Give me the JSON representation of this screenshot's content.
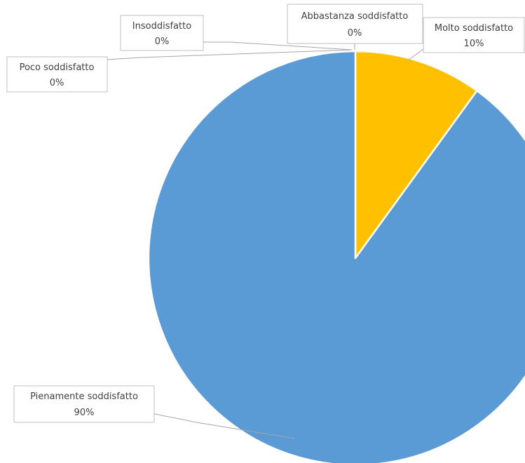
{
  "chart_data": {
    "type": "pie",
    "title": "",
    "slices": [
      {
        "label": "Insoddisfatto",
        "value": 0,
        "value_label": "0%",
        "color": "#ED7D31"
      },
      {
        "label": "Poco soddisfatto",
        "value": 0,
        "value_label": "0%",
        "color": "#A5A5A5"
      },
      {
        "label": "Abbastanza soddisfatto",
        "value": 0,
        "value_label": "0%",
        "color": "#4472C4"
      },
      {
        "label": "Molto soddisfatto",
        "value": 10,
        "value_label": "10%",
        "color": "#FFC000"
      },
      {
        "label": "Pienamente soddisfatto",
        "value": 90,
        "value_label": "90%",
        "color": "#5B9BD5"
      }
    ],
    "legend": "none",
    "data_labels": "category-and-percent with leader lines"
  }
}
